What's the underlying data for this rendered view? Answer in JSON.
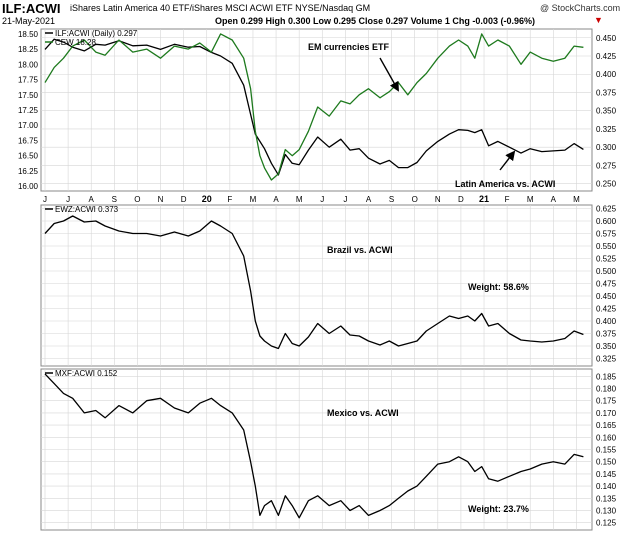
{
  "header": {
    "symbol": "ILF:ACWI",
    "title": "iShares Latin America 40 ETF/iShares MSCI ACWI ETF  NYSE/Nasdaq GM",
    "watermark": "@ StockCharts.com",
    "date": "21-May-2021",
    "quote": "Open 0.299  High 0.300  Low 0.295  Close 0.297  Volume 1  Chg -0.003 (-0.96%)",
    "quote_marker": "▼"
  },
  "colors": {
    "black_line": "#000000",
    "green_line": "#1e7a1e",
    "grid": "#d6d6d6",
    "border": "#888888",
    "marker_red": "#cc0000"
  },
  "chart_data": [
    {
      "type": "line",
      "panel": "top",
      "legend": [
        "ILF:ACWI (Daily) 0.297",
        "CEW 18.28"
      ],
      "x_tick_labels": [
        "J",
        "J",
        "A",
        "S",
        "O",
        "N",
        "D",
        "20",
        "F",
        "M",
        "A",
        "M",
        "J",
        "J",
        "A",
        "S",
        "O",
        "N",
        "D",
        "21",
        "F",
        "M",
        "A",
        "M"
      ],
      "annotations": [
        "EM currencies ETF",
        "Latin America vs. ACWI"
      ],
      "y_right": {
        "label": "ILF:ACWI",
        "ylim": [
          0.24,
          0.462
        ],
        "ticks": [
          0.25,
          0.275,
          0.3,
          0.325,
          0.35,
          0.375,
          0.4,
          0.425,
          0.45
        ]
      },
      "y_left": {
        "label": "CEW",
        "ylim": [
          15.92,
          18.58
        ],
        "ticks": [
          16.0,
          16.25,
          16.5,
          16.75,
          17.0,
          17.25,
          17.5,
          17.75,
          18.0,
          18.25,
          18.5
        ]
      },
      "series": [
        {
          "name": "ILF:ACWI",
          "axis": "right",
          "color": "#000000",
          "x": [
            0.0,
            0.4,
            0.8,
            1.2,
            1.7,
            2.2,
            2.6,
            3.2,
            3.8,
            4.4,
            5.0,
            5.6,
            6.2,
            6.7,
            7.2,
            7.6,
            8.1,
            8.6,
            8.9,
            9.1,
            9.3,
            9.5,
            9.8,
            10.1,
            10.4,
            10.7,
            11.0,
            11.4,
            11.8,
            12.3,
            12.8,
            13.2,
            13.6,
            14.0,
            14.5,
            14.9,
            15.3,
            15.7,
            16.1,
            16.5,
            17.0,
            17.5,
            17.9,
            18.3,
            18.6,
            18.9,
            19.2,
            19.6,
            20.1,
            20.6,
            21.0,
            21.5,
            22.0,
            22.5,
            22.9,
            23.3
          ],
          "values": [
            0.434,
            0.448,
            0.444,
            0.437,
            0.432,
            0.441,
            0.44,
            0.446,
            0.439,
            0.44,
            0.434,
            0.441,
            0.437,
            0.438,
            0.43,
            0.425,
            0.415,
            0.385,
            0.345,
            0.318,
            0.308,
            0.298,
            0.278,
            0.262,
            0.29,
            0.278,
            0.276,
            0.296,
            0.314,
            0.3,
            0.311,
            0.296,
            0.298,
            0.285,
            0.277,
            0.282,
            0.272,
            0.272,
            0.279,
            0.295,
            0.308,
            0.318,
            0.324,
            0.323,
            0.32,
            0.324,
            0.302,
            0.308,
            0.3,
            0.292,
            0.298,
            0.294,
            0.295,
            0.296,
            0.305,
            0.297
          ]
        },
        {
          "name": "CEW",
          "axis": "left",
          "color": "#1e7a1e",
          "x": [
            0.0,
            0.4,
            0.8,
            1.2,
            1.7,
            2.2,
            2.6,
            3.2,
            3.8,
            4.4,
            5.0,
            5.6,
            6.2,
            6.7,
            7.2,
            7.6,
            8.1,
            8.6,
            8.9,
            9.1,
            9.3,
            9.5,
            9.8,
            10.1,
            10.4,
            10.7,
            11.0,
            11.4,
            11.8,
            12.3,
            12.8,
            13.2,
            13.6,
            14.0,
            14.5,
            14.9,
            15.3,
            15.7,
            16.1,
            16.5,
            17.0,
            17.5,
            17.9,
            18.3,
            18.6,
            18.9,
            19.2,
            19.6,
            20.1,
            20.6,
            21.0,
            21.5,
            22.0,
            22.5,
            22.9,
            23.3
          ],
          "values": [
            17.7,
            17.95,
            18.1,
            18.3,
            18.4,
            18.2,
            18.15,
            18.4,
            18.2,
            18.25,
            18.1,
            18.3,
            18.25,
            18.35,
            18.2,
            18.5,
            18.4,
            18.1,
            17.6,
            16.9,
            16.5,
            16.3,
            16.1,
            16.2,
            16.6,
            16.5,
            16.6,
            16.9,
            17.3,
            17.15,
            17.4,
            17.35,
            17.5,
            17.6,
            17.45,
            17.55,
            17.7,
            17.5,
            17.7,
            17.85,
            18.1,
            18.3,
            18.4,
            18.3,
            18.1,
            18.5,
            18.3,
            18.4,
            18.3,
            18.0,
            18.2,
            18.1,
            18.05,
            18.1,
            18.3,
            18.28
          ]
        }
      ]
    },
    {
      "type": "line",
      "panel": "middle",
      "legend": [
        "EWZ:ACWI 0.373"
      ],
      "annotations": [
        "Brazil vs. ACWI",
        "Weight: 58.6%"
      ],
      "ylim": [
        0.31,
        0.632
      ],
      "yticks": [
        0.325,
        0.35,
        0.375,
        0.4,
        0.425,
        0.45,
        0.475,
        0.5,
        0.525,
        0.55,
        0.575,
        0.6,
        0.625
      ],
      "series": [
        {
          "name": "EWZ:ACWI",
          "color": "#000000",
          "x": [
            0.0,
            0.4,
            0.8,
            1.2,
            1.7,
            2.2,
            2.6,
            3.2,
            3.8,
            4.4,
            5.0,
            5.6,
            6.2,
            6.7,
            7.2,
            7.6,
            8.1,
            8.6,
            8.9,
            9.1,
            9.3,
            9.5,
            9.8,
            10.1,
            10.4,
            10.7,
            11.0,
            11.4,
            11.8,
            12.3,
            12.8,
            13.2,
            13.6,
            14.0,
            14.5,
            14.9,
            15.3,
            15.7,
            16.1,
            16.5,
            17.0,
            17.5,
            17.9,
            18.3,
            18.6,
            18.9,
            19.2,
            19.6,
            20.1,
            20.6,
            21.0,
            21.5,
            22.0,
            22.5,
            22.9,
            23.3
          ],
          "values": [
            0.575,
            0.595,
            0.6,
            0.61,
            0.598,
            0.6,
            0.59,
            0.58,
            0.575,
            0.575,
            0.57,
            0.578,
            0.57,
            0.58,
            0.6,
            0.59,
            0.575,
            0.53,
            0.46,
            0.4,
            0.37,
            0.36,
            0.35,
            0.345,
            0.375,
            0.355,
            0.35,
            0.368,
            0.395,
            0.375,
            0.39,
            0.372,
            0.37,
            0.36,
            0.352,
            0.36,
            0.35,
            0.355,
            0.36,
            0.38,
            0.395,
            0.41,
            0.405,
            0.41,
            0.4,
            0.415,
            0.39,
            0.395,
            0.375,
            0.362,
            0.36,
            0.358,
            0.36,
            0.365,
            0.38,
            0.373
          ]
        }
      ]
    },
    {
      "type": "line",
      "panel": "bottom",
      "legend": [
        "MXF:ACWI 0.152"
      ],
      "annotations": [
        "Mexico vs. ACWI",
        "Weight: 23.7%"
      ],
      "ylim": [
        0.122,
        0.188
      ],
      "yticks": [
        0.125,
        0.13,
        0.135,
        0.14,
        0.145,
        0.15,
        0.155,
        0.16,
        0.165,
        0.17,
        0.175,
        0.18,
        0.185
      ],
      "series": [
        {
          "name": "MXF:ACWI",
          "color": "#000000",
          "x": [
            0.0,
            0.4,
            0.8,
            1.2,
            1.7,
            2.2,
            2.6,
            3.2,
            3.8,
            4.4,
            5.0,
            5.6,
            6.2,
            6.7,
            7.2,
            7.6,
            8.1,
            8.6,
            8.9,
            9.1,
            9.3,
            9.5,
            9.8,
            10.1,
            10.4,
            10.7,
            11.0,
            11.4,
            11.8,
            12.3,
            12.8,
            13.2,
            13.6,
            14.0,
            14.5,
            14.9,
            15.3,
            15.7,
            16.1,
            16.5,
            17.0,
            17.5,
            17.9,
            18.3,
            18.6,
            18.9,
            19.2,
            19.6,
            20.1,
            20.6,
            21.0,
            21.5,
            22.0,
            22.5,
            22.9,
            23.3
          ],
          "values": [
            0.186,
            0.182,
            0.178,
            0.176,
            0.17,
            0.171,
            0.168,
            0.173,
            0.17,
            0.175,
            0.176,
            0.172,
            0.17,
            0.174,
            0.176,
            0.173,
            0.17,
            0.163,
            0.15,
            0.14,
            0.128,
            0.132,
            0.134,
            0.128,
            0.136,
            0.132,
            0.127,
            0.134,
            0.136,
            0.132,
            0.134,
            0.13,
            0.132,
            0.128,
            0.13,
            0.132,
            0.135,
            0.138,
            0.14,
            0.144,
            0.149,
            0.15,
            0.152,
            0.15,
            0.146,
            0.148,
            0.143,
            0.142,
            0.144,
            0.146,
            0.147,
            0.149,
            0.15,
            0.149,
            0.153,
            0.152
          ]
        }
      ]
    }
  ]
}
